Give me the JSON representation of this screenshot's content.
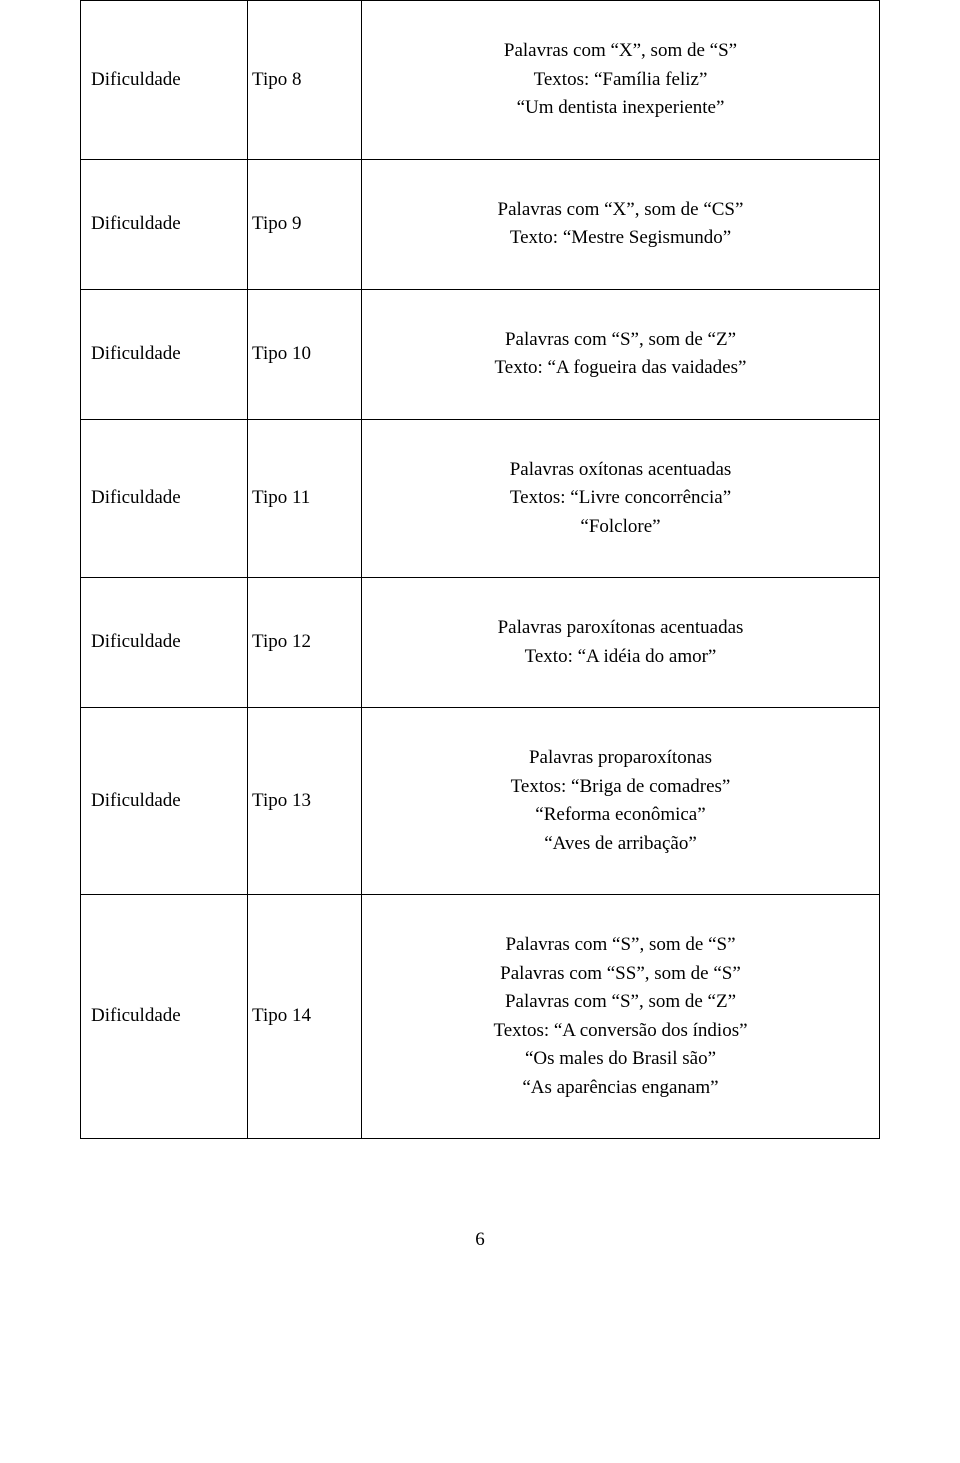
{
  "rows": [
    {
      "col1": "Dificuldade",
      "col2": "Tipo  8",
      "lines": [
        "Palavras com \"X\", som de \"S\"",
        "Textos: \"Família feliz\"",
        "\"Um dentista inexperiente\""
      ]
    },
    {
      "col1": "Dificuldade",
      "col2": "Tipo  9",
      "lines": [
        "Palavras com \"X\", som de \"CS\"",
        "Texto: \"Mestre Segismundo\""
      ]
    },
    {
      "col1": "Dificuldade",
      "col2": "Tipo 10",
      "lines": [
        "Palavras com \"S\", som de \"Z\"",
        "Texto: \"A fogueira das vaidades\""
      ]
    },
    {
      "col1": "Dificuldade",
      "col2": "Tipo 11",
      "lines": [
        "Palavras oxítonas acentuadas",
        "Textos: \"Livre concorrência\"",
        "\"Folclore\""
      ]
    },
    {
      "col1": "Dificuldade",
      "col2": "Tipo 12",
      "lines": [
        "Palavras paroxítonas acentuadas",
        "Texto: \"A idéia do amor\""
      ]
    },
    {
      "col1": "Dificuldade",
      "col2": "Tipo 13",
      "lines": [
        "Palavras proparoxítonas",
        "Textos: \"Briga de comadres\"",
        "\"Reforma econômica\"",
        "\"Aves de arribação\""
      ]
    },
    {
      "col1": "Dificuldade",
      "col2": "Tipo 14",
      "lines": [
        "Palavras com \"S\", som de \"S\"",
        "Palavras com \"SS\", som de \"S\"",
        "Palavras com \"S\", som de \"Z\"",
        "Textos: \"A conversão dos índios\"",
        "\"Os males do Brasil são\"",
        "\"As aparências enganam\""
      ]
    }
  ],
  "page_number": "6",
  "colors": {
    "background": "#ffffff",
    "text": "#000000",
    "border": "#000000"
  }
}
